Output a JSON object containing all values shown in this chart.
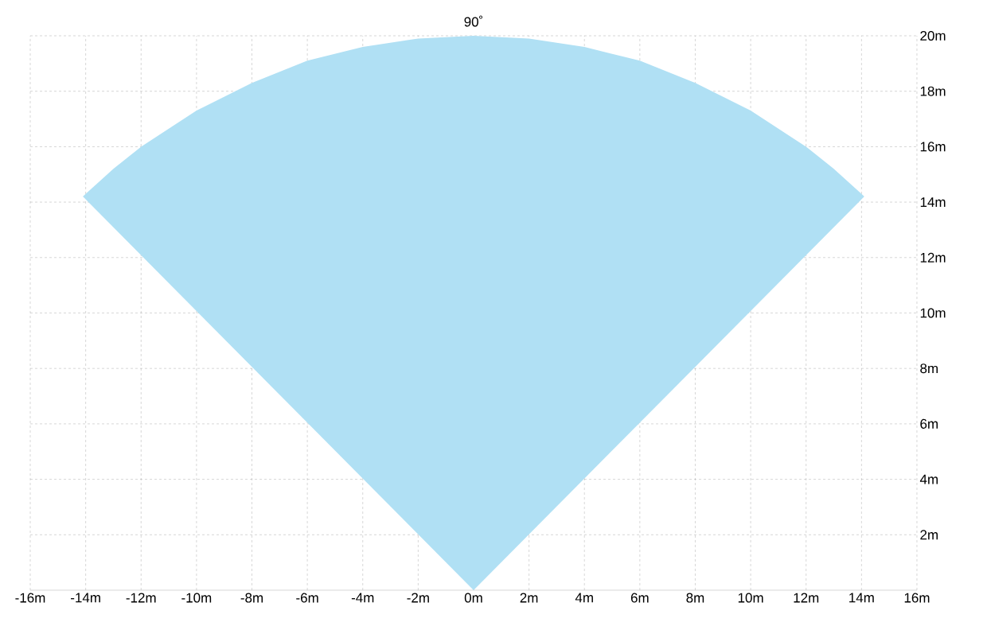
{
  "chart_data": {
    "type": "area",
    "title": "90˚",
    "x": [
      0,
      -14.1,
      -14,
      -13,
      -12,
      -10,
      -8,
      -6,
      -4,
      -2,
      0,
      2,
      4,
      6,
      8,
      10,
      12,
      13,
      14,
      14.1,
      0
    ],
    "series": [
      {
        "color": "#b0e0f4",
        "values": [
          0,
          14.2,
          14.3,
          15.2,
          16,
          17.3,
          18.3,
          19.1,
          19.6,
          19.9,
          20,
          19.9,
          19.6,
          19.1,
          18.3,
          17.3,
          16,
          15.2,
          14.3,
          14.2,
          0
        ]
      }
    ],
    "xlim": [
      -16,
      16
    ],
    "ylim": [
      0,
      20
    ],
    "xticks": [
      {
        "value": -16,
        "label": "-16m"
      },
      {
        "value": -14,
        "label": "-14m"
      },
      {
        "value": -12,
        "label": "-12m"
      },
      {
        "value": -10,
        "label": "-10m"
      },
      {
        "value": -8,
        "label": "-8m"
      },
      {
        "value": -6,
        "label": "-6m"
      },
      {
        "value": -4,
        "label": "-4m"
      },
      {
        "value": -2,
        "label": "-2m"
      },
      {
        "value": 0,
        "label": "0m"
      },
      {
        "value": 2,
        "label": "2m"
      },
      {
        "value": 4,
        "label": "4m"
      },
      {
        "value": 6,
        "label": "6m"
      },
      {
        "value": 8,
        "label": "8m"
      },
      {
        "value": 10,
        "label": "10m"
      },
      {
        "value": 12,
        "label": "12m"
      },
      {
        "value": 14,
        "label": "14m"
      },
      {
        "value": 16,
        "label": "16m"
      }
    ],
    "yticks": [
      {
        "value": 2,
        "label": "2m"
      },
      {
        "value": 4,
        "label": "4m"
      },
      {
        "value": 6,
        "label": "6m"
      },
      {
        "value": 8,
        "label": "8m"
      },
      {
        "value": 10,
        "label": "10m"
      },
      {
        "value": 12,
        "label": "12m"
      },
      {
        "value": 14,
        "label": "14m"
      },
      {
        "value": 16,
        "label": "16m"
      },
      {
        "value": 18,
        "label": "18m"
      },
      {
        "value": 20,
        "label": "20m"
      }
    ],
    "grid": true
  }
}
